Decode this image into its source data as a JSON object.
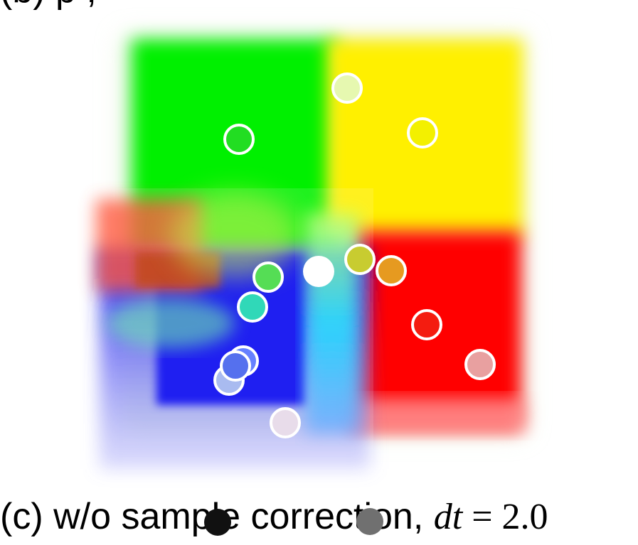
{
  "caption": {
    "prefix": "(c) w/o sample correction,",
    "math_var": "dt",
    "math_eq": " = ",
    "math_value": "2.0"
  },
  "top_caption_fragment": "(b)         p                        ,",
  "colors": {
    "green": "#00f000",
    "yellow": "#fff000",
    "red": "#ff0000",
    "blue": "#0000f0",
    "cyan": "#00e8ff",
    "background": "#ffffff"
  },
  "markers": [
    {
      "name": "marker-green",
      "fill": "#22dd22",
      "style": "ring"
    },
    {
      "name": "marker-pale-yellow",
      "fill": "#e6f8b0",
      "style": "ring"
    },
    {
      "name": "marker-yellow",
      "fill": "#f3f000",
      "style": "ring"
    },
    {
      "name": "marker-olive",
      "fill": "#c8cc30",
      "style": "ring"
    },
    {
      "name": "marker-orange",
      "fill": "#e69a20",
      "style": "ring"
    },
    {
      "name": "marker-light-green",
      "fill": "#55dd55",
      "style": "ring"
    },
    {
      "name": "marker-white",
      "fill": "#ffffff",
      "style": "solid"
    },
    {
      "name": "marker-teal",
      "fill": "#30d8b8",
      "style": "ring"
    },
    {
      "name": "marker-red",
      "fill": "#f41c10",
      "style": "ring"
    },
    {
      "name": "marker-pink",
      "fill": "#e8a0a0",
      "style": "ring"
    },
    {
      "name": "marker-blue-a",
      "fill": "#6680ff",
      "style": "ring"
    },
    {
      "name": "marker-blue-b",
      "fill": "#5570ee",
      "style": "ring"
    },
    {
      "name": "marker-light-blue",
      "fill": "#a9bbf0",
      "style": "ring"
    },
    {
      "name": "marker-lavender",
      "fill": "#e8dcea",
      "style": "ring"
    },
    {
      "name": "marker-black",
      "fill": "#111111",
      "style": "solid"
    },
    {
      "name": "marker-gray",
      "fill": "#707070",
      "style": "solid"
    }
  ]
}
